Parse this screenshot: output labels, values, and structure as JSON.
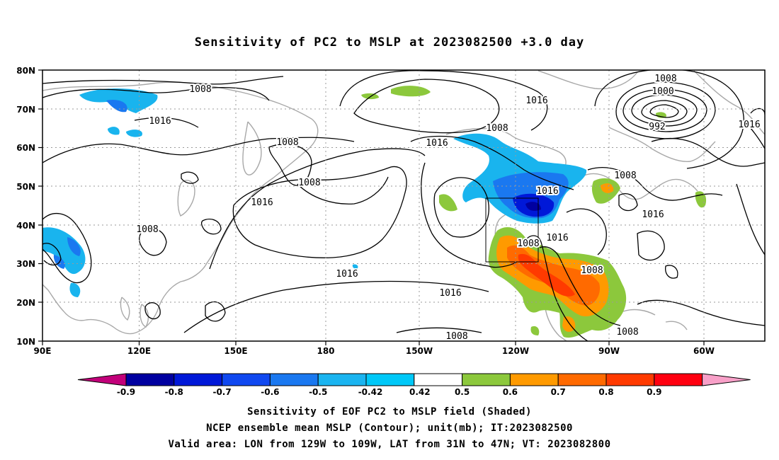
{
  "title": "Sensitivity of PC2 to MSLP at 2023082500 +3.0 day",
  "lat_labels": [
    "80N",
    "70N",
    "60N",
    "50N",
    "40N",
    "30N",
    "20N",
    "10N"
  ],
  "lon_labels": [
    "90E",
    "120E",
    "150E",
    "180",
    "150W",
    "120W",
    "90W",
    "60W"
  ],
  "contour_labels": [
    "1008",
    "1016",
    "1016",
    "1008",
    "1008",
    "1016",
    "1008",
    "1016",
    "1016",
    "1008",
    "1000",
    "992",
    "1016",
    "1008",
    "1016",
    "1016",
    "1008",
    "1016",
    "1008",
    "1008",
    "1016",
    "1008",
    "1016",
    "1008"
  ],
  "colorbar": {
    "labels": [
      "-0.9",
      "-0.8",
      "-0.7",
      "-0.6",
      "-0.5",
      "-0.42",
      "0.42",
      "0.5",
      "0.6",
      "0.7",
      "0.8",
      "0.9"
    ],
    "colors": [
      "#c2007a",
      "#0000a0",
      "#0018d8",
      "#1048f0",
      "#1a78f0",
      "#1ab4f0",
      "#00c8f8",
      "#ffffff",
      "#8cc83c",
      "#ff9a00",
      "#ff6a00",
      "#ff3a00",
      "#ff0010",
      "#f8a0c8"
    ]
  },
  "captions": [
    "Sensitivity of EOF PC2 to MSLP field (Shaded)",
    "NCEP ensemble mean MSLP (Contour); unit(mb); IT:2023082500",
    "Valid area: LON from 129W to 109W, LAT from 31N to 47N; VT: 2023082800"
  ]
}
